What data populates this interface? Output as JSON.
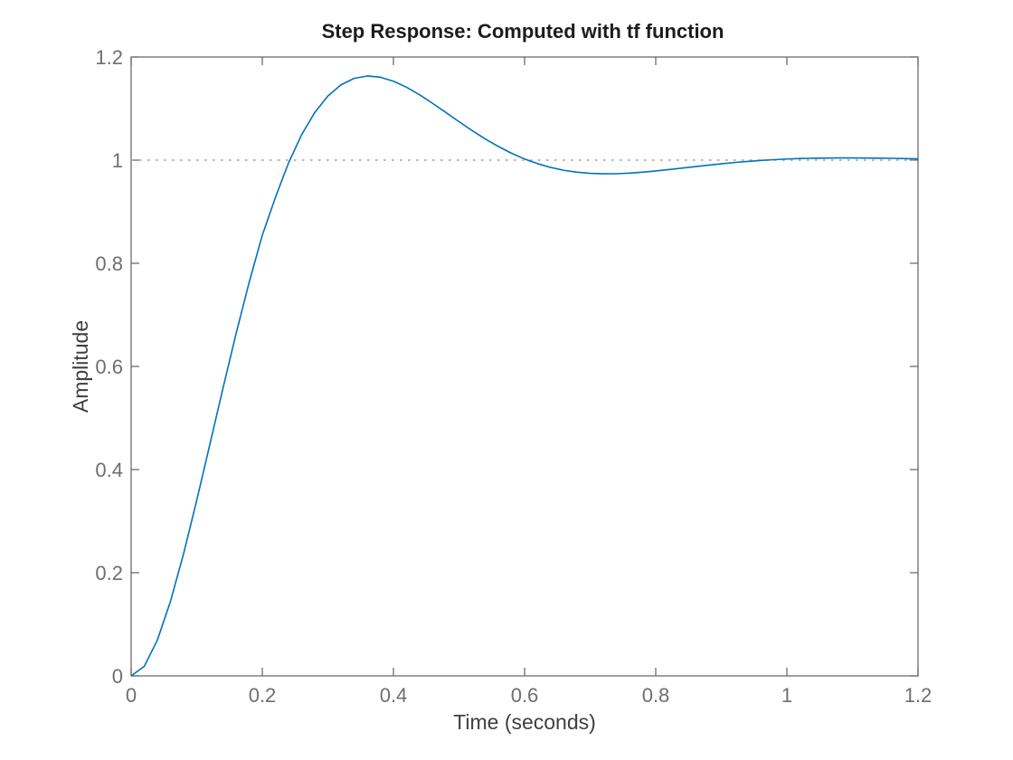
{
  "figure": {
    "title": "Step Response: Computed with tf function",
    "xlabel": "Time (seconds)",
    "ylabel": "Amplitude"
  },
  "colors": {
    "background": "#ffffff",
    "curve": "#0072BD",
    "steady_state_line": "#a0a0a0",
    "axis": "#606060",
    "tick_label": "#6e6e6e",
    "axis_label": "#3f3f3f",
    "title": "#1c1c1c"
  },
  "chart_data": {
    "type": "line",
    "title": "Step Response: Computed with tf function",
    "xlabel": "Time (seconds)",
    "ylabel": "Amplitude",
    "xlim": [
      0,
      1.2
    ],
    "ylim": [
      0,
      1.2
    ],
    "x_ticks": [
      0,
      0.2,
      0.4,
      0.6,
      0.8,
      1,
      1.2
    ],
    "y_ticks": [
      0,
      0.2,
      0.4,
      0.6,
      0.8,
      1,
      1.2
    ],
    "x_tick_labels": [
      "0",
      "0.2",
      "0.4",
      "0.6",
      "0.8",
      "1",
      "1.2"
    ],
    "y_tick_labels": [
      "0",
      "0.2",
      "0.4",
      "0.6",
      "0.8",
      "1",
      "1.2"
    ],
    "grid": false,
    "box": true,
    "tick_direction": "in",
    "legend": null,
    "annotations": [
      {
        "name": "peak",
        "x": 0.36,
        "y": 1.163
      },
      {
        "name": "undershoot",
        "x": 0.72,
        "y": 0.9735
      },
      {
        "name": "steady-state",
        "y": 1.0
      }
    ],
    "series": [
      {
        "name": "steady-state",
        "style": "dotted",
        "color": "#a0a0a0",
        "width": 1.4,
        "dash": "2.5 6.5",
        "x": [
          0,
          1.2
        ],
        "y": [
          1,
          1
        ]
      },
      {
        "name": "step-response",
        "style": "solid",
        "color": "#0072BD",
        "width": 1.6,
        "x": [
          0,
          0.02,
          0.04,
          0.06,
          0.08,
          0.1,
          0.12,
          0.14,
          0.16,
          0.18,
          0.2,
          0.22,
          0.24,
          0.26,
          0.28,
          0.3,
          0.32,
          0.34,
          0.36,
          0.38,
          0.4,
          0.42,
          0.44,
          0.46,
          0.48,
          0.5,
          0.52,
          0.54,
          0.56,
          0.58,
          0.6,
          0.62,
          0.64,
          0.66,
          0.68,
          0.7,
          0.72,
          0.74,
          0.76,
          0.78,
          0.8,
          0.82,
          0.84,
          0.86,
          0.88,
          0.9,
          0.92,
          0.94,
          0.96,
          0.98,
          1,
          1.02,
          1.04,
          1.06,
          1.08,
          1.1,
          1.12,
          1.14,
          1.16,
          1.18,
          1.2
        ],
        "y": [
          0,
          0.0185,
          0.0694,
          0.1446,
          0.237,
          0.3402,
          0.4485,
          0.5575,
          0.6634,
          0.7632,
          0.8543,
          0.9277,
          0.9945,
          1.0493,
          1.0924,
          1.1244,
          1.146,
          1.1585,
          1.1632,
          1.1608,
          1.1531,
          1.1413,
          1.1266,
          1.1099,
          1.0924,
          1.0746,
          1.0574,
          1.0412,
          1.0265,
          1.0134,
          1.0023,
          0.9931,
          0.9858,
          0.9803,
          0.9766,
          0.9744,
          0.9735,
          0.9737,
          0.9748,
          0.9767,
          0.979,
          0.9817,
          0.9845,
          0.9874,
          0.9903,
          0.9929,
          0.9954,
          0.9975,
          0.9994,
          1.0009,
          1.0022,
          1.0031,
          1.0037,
          1.0041,
          1.0043,
          1.0043,
          1.0041,
          1.0039,
          1.0035,
          1.003,
          1.0026
        ]
      }
    ]
  }
}
